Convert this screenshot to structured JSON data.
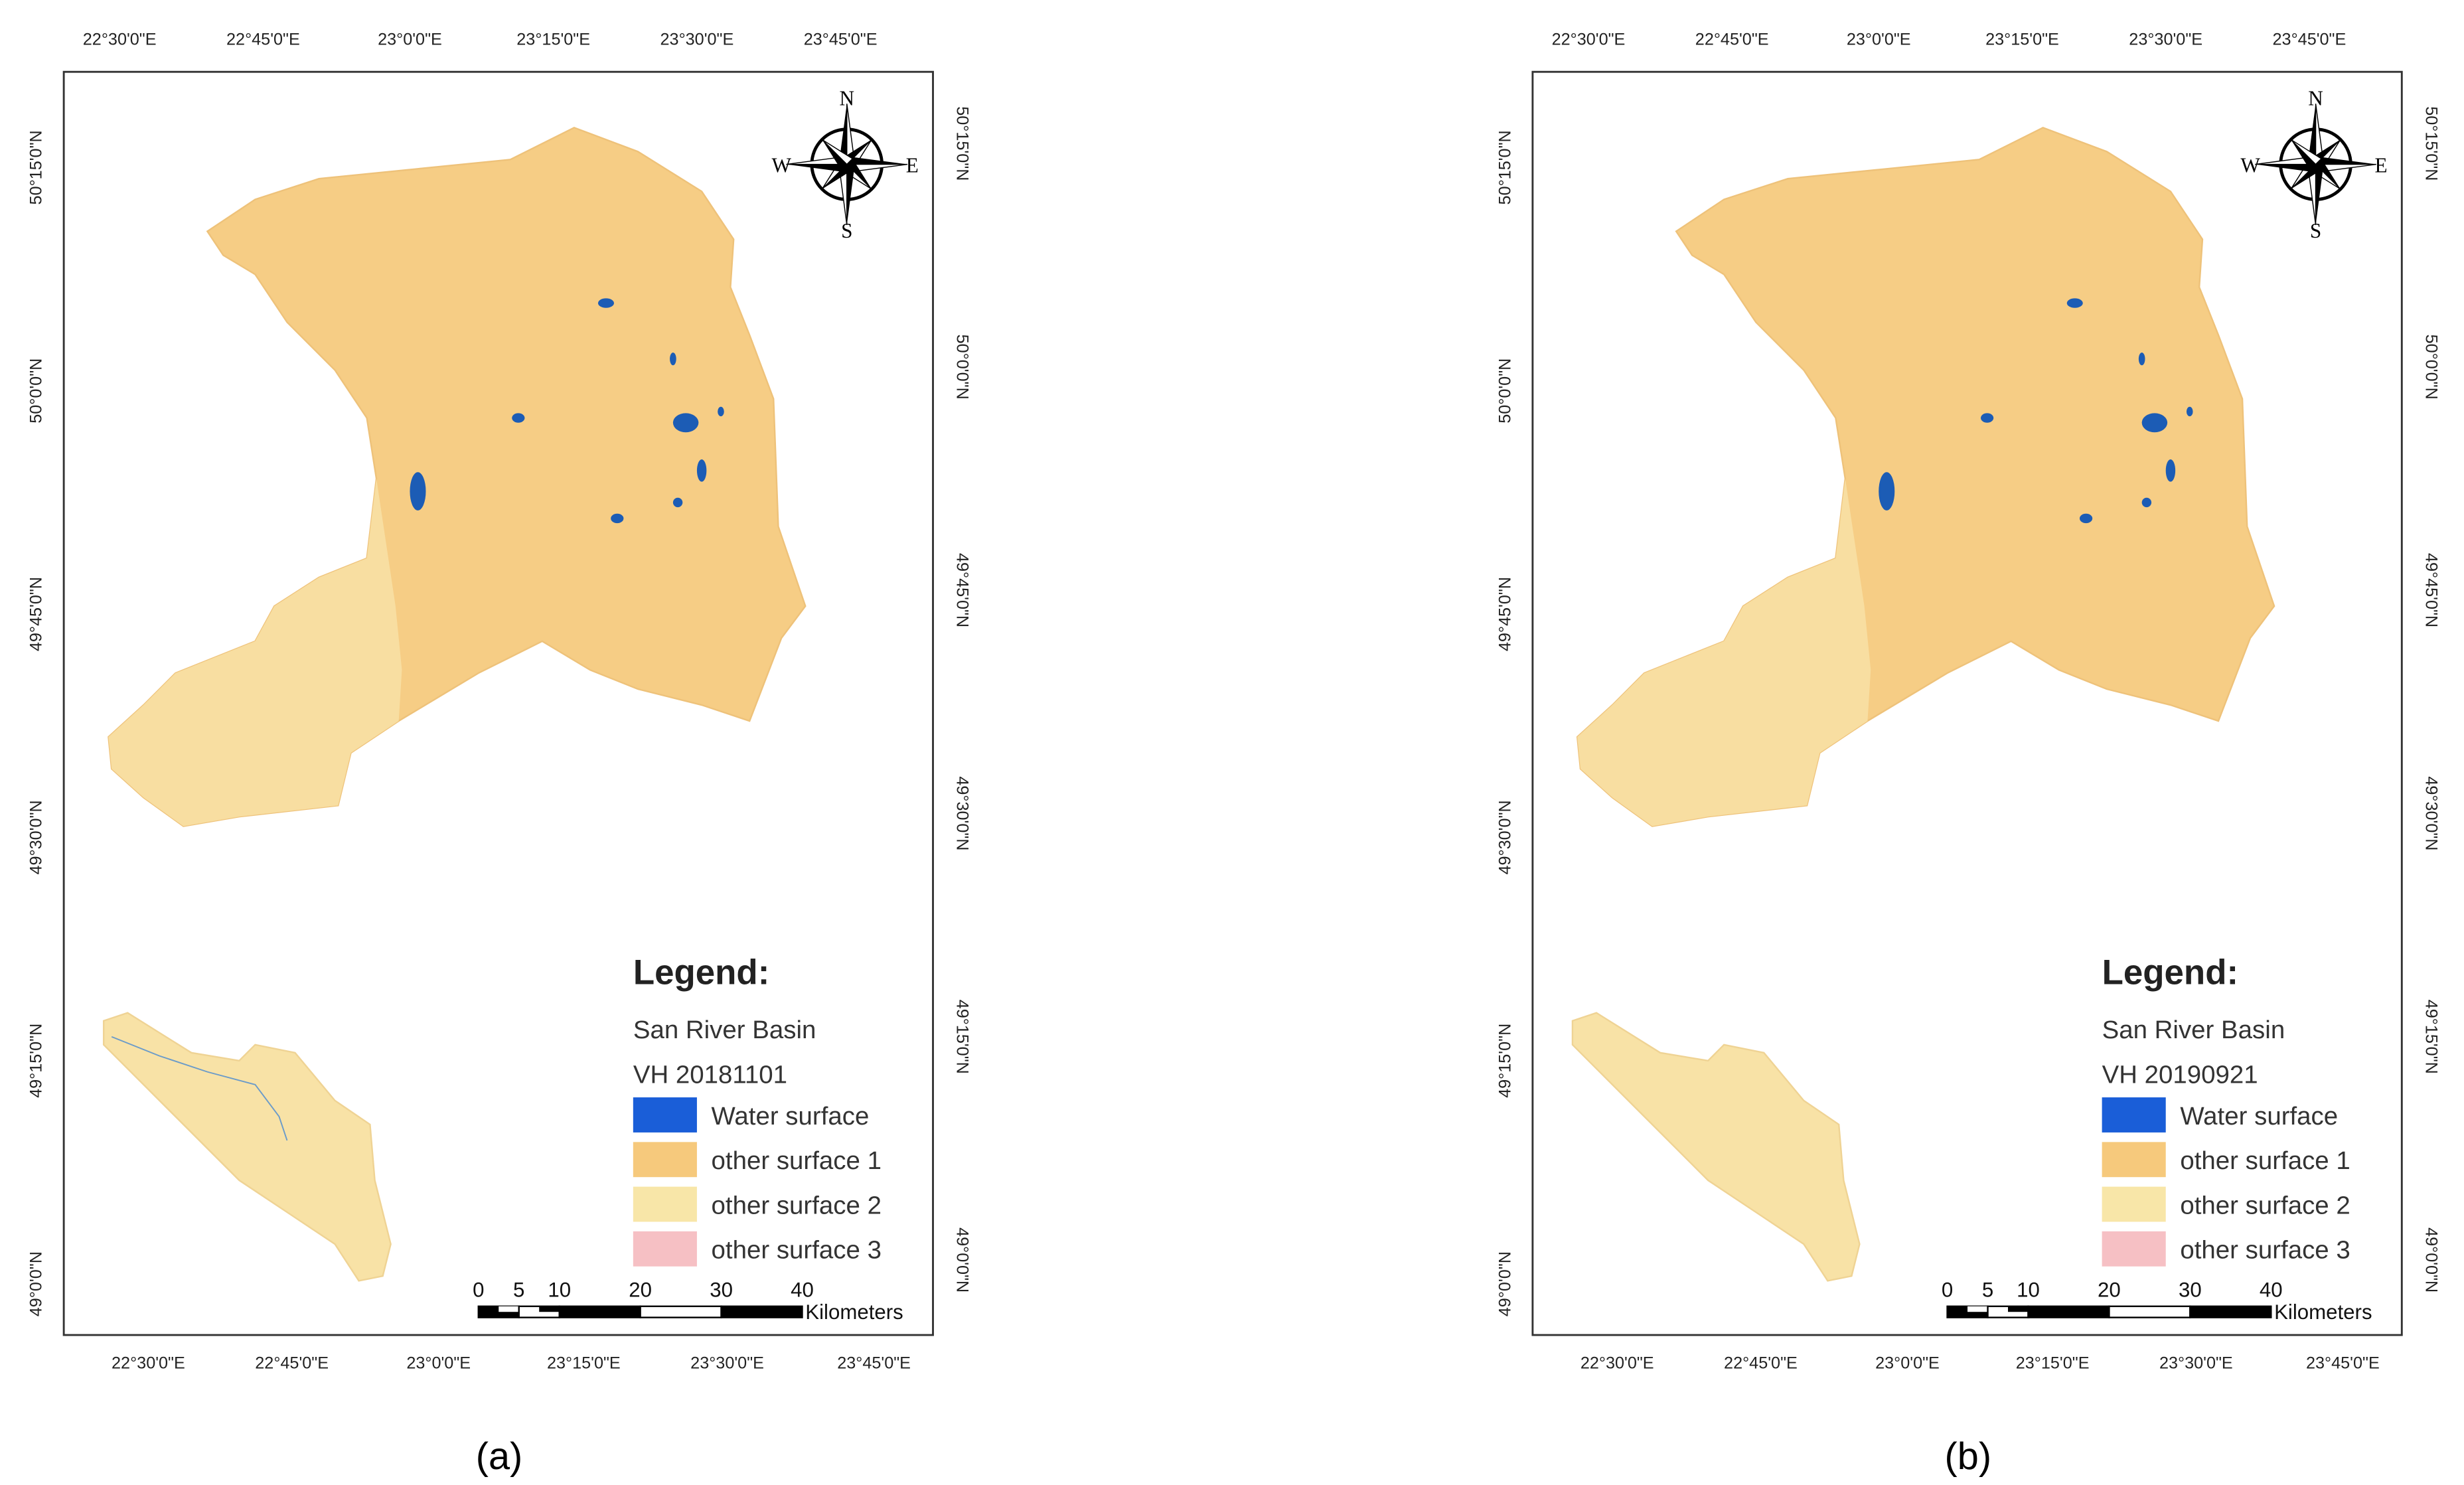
{
  "panels": [
    {
      "caption": "(a)",
      "top_ticks": [
        "22°30'0\"E",
        "22°45'0\"E",
        "23°0'0\"E",
        "23°15'0\"E",
        "23°30'0\"E",
        "23°45'0\"E"
      ],
      "bottom_ticks": [
        "22°30'0\"E",
        "22°45'0\"E",
        "23°0'0\"E",
        "23°15'0\"E",
        "23°30'0\"E",
        "23°45'0\"E"
      ],
      "left_ticks": [
        "50°15'0\"N",
        "50°0'0\"N",
        "49°45'0\"N",
        "49°30'0\"N",
        "49°15'0\"N",
        "49°0'0\"N"
      ],
      "right_ticks": [
        "50°15'0\"N",
        "50°0'0\"N",
        "49°45'0\"N",
        "49°30'0\"N",
        "49°15'0\"N",
        "49°0'0\"N"
      ],
      "compass": {
        "n": "N",
        "e": "E",
        "s": "S",
        "w": "W"
      },
      "legend": {
        "title": "Legend:",
        "layer": "San River Basin",
        "band": "VH 20181101",
        "items": [
          {
            "label": "Water surface",
            "color": "#1a5ed8"
          },
          {
            "label": "other surface 1",
            "color": "#f6c97c"
          },
          {
            "label": "other surface 2",
            "color": "#f8e6a8"
          },
          {
            "label": "other surface 3",
            "color": "#f6c0c4"
          }
        ]
      },
      "scale_bar": {
        "ticks": [
          0,
          5,
          10,
          20,
          30,
          40
        ],
        "unit": "Kilometers"
      }
    },
    {
      "caption": "(b)",
      "top_ticks": [
        "22°30'0\"E",
        "22°45'0\"E",
        "23°0'0\"E",
        "23°15'0\"E",
        "23°30'0\"E",
        "23°45'0\"E"
      ],
      "bottom_ticks": [
        "22°30'0\"E",
        "22°45'0\"E",
        "23°0'0\"E",
        "23°15'0\"E",
        "23°30'0\"E",
        "23°45'0\"E"
      ],
      "left_ticks": [
        "50°15'0\"N",
        "50°0'0\"N",
        "49°45'0\"N",
        "49°30'0\"N",
        "49°15'0\"N",
        "49°0'0\"N"
      ],
      "right_ticks": [
        "50°15'0\"N",
        "50°0'0\"N",
        "49°45'0\"N",
        "49°30'0\"N",
        "49°15'0\"N",
        "49°0'0\"N"
      ],
      "compass": {
        "n": "N",
        "e": "E",
        "s": "S",
        "w": "W"
      },
      "legend": {
        "title": "Legend:",
        "layer": "San River Basin",
        "band": "VH 20190921",
        "items": [
          {
            "label": "Water surface",
            "color": "#1a5ed8"
          },
          {
            "label": "other surface 1",
            "color": "#f6c97c"
          },
          {
            "label": "other surface 2",
            "color": "#f8e6a8"
          },
          {
            "label": "other surface 3",
            "color": "#f6c0c4"
          }
        ]
      },
      "scale_bar": {
        "ticks": [
          0,
          5,
          10,
          20,
          30,
          40
        ],
        "unit": "Kilometers"
      }
    }
  ]
}
